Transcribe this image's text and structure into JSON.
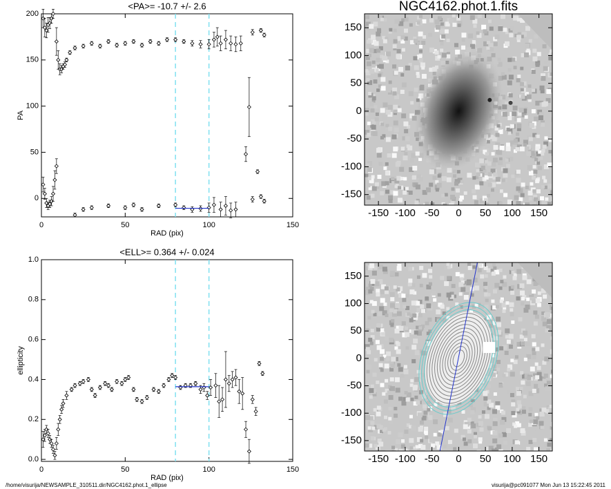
{
  "chart_data": [
    {
      "type": "scatter",
      "title": "<PA>= -10.7 +/-   2.6",
      "x_label": "RAD (pix)",
      "y_label": "PA",
      "xlim": [
        0,
        150
      ],
      "ylim": [
        -20,
        200
      ],
      "xticks": [
        0,
        50,
        100,
        150
      ],
      "yticks": [
        0,
        50,
        100,
        150,
        200
      ],
      "vlines": [
        80,
        100
      ],
      "vline_color": "#7fe0f0",
      "fit_line": {
        "x": [
          80,
          100
        ],
        "values": [
          -10.7,
          -10.7
        ],
        "color": "#2233cc"
      },
      "series": [
        {
          "name": "PA",
          "color": "#000000",
          "x": [
            1,
            2,
            3,
            4,
            5,
            6,
            7,
            1,
            2,
            3,
            4,
            5,
            6,
            7,
            8,
            9,
            9,
            10,
            11,
            12,
            13,
            14,
            15,
            17,
            20,
            25,
            30,
            35,
            40,
            45,
            50,
            55,
            60,
            65,
            70,
            75,
            80,
            85,
            90,
            95,
            100,
            103,
            105,
            107,
            110,
            113,
            116,
            119,
            122,
            124,
            126,
            129,
            131,
            133,
            20,
            25,
            30,
            40,
            50,
            55,
            60,
            70,
            80,
            85,
            90,
            95,
            100,
            103,
            107,
            110,
            113,
            116,
            126,
            131,
            133
          ],
          "values": [
            195,
            185,
            182,
            188,
            190,
            195,
            200,
            15,
            5,
            -5,
            -8,
            -6,
            -3,
            5,
            20,
            35,
            170,
            150,
            140,
            140,
            143,
            145,
            150,
            158,
            163,
            165,
            168,
            165,
            170,
            166,
            168,
            170,
            166,
            170,
            168,
            172,
            172,
            170,
            168,
            167,
            167,
            172,
            175,
            168,
            172,
            168,
            167,
            168,
            48,
            99,
            180,
            29,
            182,
            177,
            -18,
            -12,
            -10,
            -8,
            -10,
            -7,
            -12,
            -8,
            -7,
            -10,
            -12,
            -11,
            -10,
            -7,
            -12,
            -8,
            -13,
            -12,
            -1,
            2,
            -3
          ],
          "errors": [
            10,
            10,
            8,
            8,
            6,
            5,
            5,
            8,
            6,
            5,
            4,
            4,
            5,
            8,
            10,
            8,
            15,
            10,
            6,
            4,
            3,
            3,
            2,
            2,
            2,
            2,
            2,
            2,
            2,
            2,
            2,
            2,
            2,
            2,
            2,
            2,
            2,
            2,
            3,
            4,
            5,
            8,
            10,
            8,
            10,
            8,
            8,
            8,
            8,
            32,
            3,
            2,
            2,
            2,
            2,
            2,
            2,
            2,
            2,
            2,
            2,
            2,
            2,
            2,
            3,
            3,
            5,
            8,
            8,
            10,
            8,
            8,
            3,
            2,
            2
          ]
        }
      ]
    },
    {
      "type": "scatter",
      "title": "<ELL>= 0.364 +/-  0.024",
      "x_label": "RAD (pix)",
      "y_label": "ellipticity",
      "xlim": [
        0,
        150
      ],
      "ylim": [
        -0.01,
        1.0
      ],
      "xticks": [
        0,
        50,
        100,
        150
      ],
      "yticks": [
        {
          "value": 0,
          "label": "0.0"
        },
        0.2,
        0.4,
        0.6,
        0.8,
        {
          "value": 1,
          "label": "1.0"
        }
      ],
      "vlines": [
        80,
        100
      ],
      "vline_color": "#7fe0f0",
      "fit_line": {
        "x": [
          80,
          100
        ],
        "values": [
          0.364,
          0.364
        ],
        "color": "#2233cc"
      },
      "series": [
        {
          "name": "ellipticity",
          "color": "#000000",
          "x": [
            1,
            2,
            3,
            4,
            5,
            6,
            7,
            8,
            9,
            10,
            11,
            12,
            13,
            15,
            18,
            20,
            23,
            25,
            28,
            30,
            32,
            35,
            38,
            40,
            42,
            45,
            48,
            50,
            52,
            55,
            57,
            60,
            63,
            67,
            70,
            73,
            76,
            78,
            80,
            83,
            86,
            89,
            92,
            95,
            97,
            99,
            101,
            104,
            106,
            108,
            110,
            112,
            114,
            116,
            118,
            120,
            122,
            124,
            126,
            128,
            130,
            132
          ],
          "values": [
            0.1,
            0.12,
            0.15,
            0.13,
            0.1,
            0.08,
            0.05,
            0.02,
            0.08,
            0.15,
            0.2,
            0.25,
            0.28,
            0.32,
            0.35,
            0.37,
            0.38,
            0.39,
            0.4,
            0.35,
            0.32,
            0.36,
            0.38,
            0.37,
            0.35,
            0.39,
            0.38,
            0.4,
            0.41,
            0.35,
            0.3,
            0.29,
            0.31,
            0.35,
            0.34,
            0.37,
            0.4,
            0.42,
            0.41,
            0.36,
            0.37,
            0.37,
            0.38,
            0.35,
            0.36,
            0.32,
            0.36,
            0.37,
            0.29,
            0.3,
            0.4,
            0.38,
            0.4,
            0.41,
            0.34,
            0.33,
            0.15,
            0.04,
            0.3,
            0.24,
            0.48,
            0.43
          ],
          "errors": [
            0.04,
            0.03,
            0.02,
            0.02,
            0.02,
            0.02,
            0.02,
            0.02,
            0.03,
            0.03,
            0.02,
            0.02,
            0.02,
            0.02,
            0.01,
            0.01,
            0.01,
            0.01,
            0.01,
            0.01,
            0.01,
            0.01,
            0.01,
            0.01,
            0.01,
            0.01,
            0.01,
            0.01,
            0.01,
            0.01,
            0.01,
            0.01,
            0.01,
            0.01,
            0.01,
            0.01,
            0.01,
            0.01,
            0.01,
            0.01,
            0.01,
            0.01,
            0.01,
            0.02,
            0.02,
            0.02,
            0.04,
            0.06,
            0.08,
            0.06,
            0.14,
            0.04,
            0.04,
            0.04,
            0.06,
            0.08,
            0.04,
            0.06,
            0.02,
            0.02,
            0.01,
            0.01
          ]
        }
      ]
    },
    {
      "type": "image",
      "title": "NGC4162.phot.1.fits",
      "xlim": [
        -176,
        175
      ],
      "ylim": [
        -169,
        175
      ],
      "xticks": [
        -150,
        -100,
        -50,
        0,
        50,
        100,
        150
      ],
      "yticks": [
        -150,
        -100,
        -50,
        0,
        50,
        100,
        150
      ]
    },
    {
      "type": "image",
      "xlim": [
        -176,
        175
      ],
      "ylim": [
        -169,
        175
      ],
      "xticks": [
        -150,
        -100,
        -50,
        0,
        50,
        100,
        150
      ],
      "yticks": [
        -150,
        -100,
        -50,
        0,
        50,
        100,
        150
      ]
    }
  ],
  "footer": {
    "left": "/home/visurija/NEWSAMPLE_310511.dir/NGC4162.phot.1_ellipse",
    "right": "visurija@pc091077  Mon Jun 13 15:22:45 2011"
  }
}
